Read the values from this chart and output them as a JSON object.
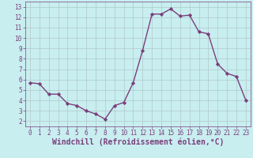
{
  "x": [
    0,
    1,
    2,
    3,
    4,
    5,
    6,
    7,
    8,
    9,
    10,
    11,
    12,
    13,
    14,
    15,
    16,
    17,
    18,
    19,
    20,
    21,
    22,
    23
  ],
  "y": [
    5.7,
    5.6,
    4.6,
    4.6,
    3.7,
    3.5,
    3.0,
    2.7,
    2.2,
    3.5,
    3.8,
    5.7,
    8.8,
    12.3,
    12.3,
    12.8,
    12.1,
    12.2,
    10.6,
    10.4,
    7.5,
    6.6,
    6.3,
    4.0
  ],
  "line_color": "#7b3f7b",
  "marker": "D",
  "marker_size": 2.2,
  "bg_color": "#c8eef0",
  "grid_color": "#b0c8c8",
  "xlabel": "Windchill (Refroidissement éolien,°C)",
  "xlabel_color": "#7b3f7b",
  "ylim": [
    1.5,
    13.5
  ],
  "xlim": [
    -0.5,
    23.5
  ],
  "yticks": [
    2,
    3,
    4,
    5,
    6,
    7,
    8,
    9,
    10,
    11,
    12,
    13
  ],
  "xticks": [
    0,
    1,
    2,
    3,
    4,
    5,
    6,
    7,
    8,
    9,
    10,
    11,
    12,
    13,
    14,
    15,
    16,
    17,
    18,
    19,
    20,
    21,
    22,
    23
  ],
  "tick_color": "#7b3f7b",
  "tick_label_fontsize": 5.5,
  "xlabel_fontsize": 7.0,
  "linewidth": 1.0
}
